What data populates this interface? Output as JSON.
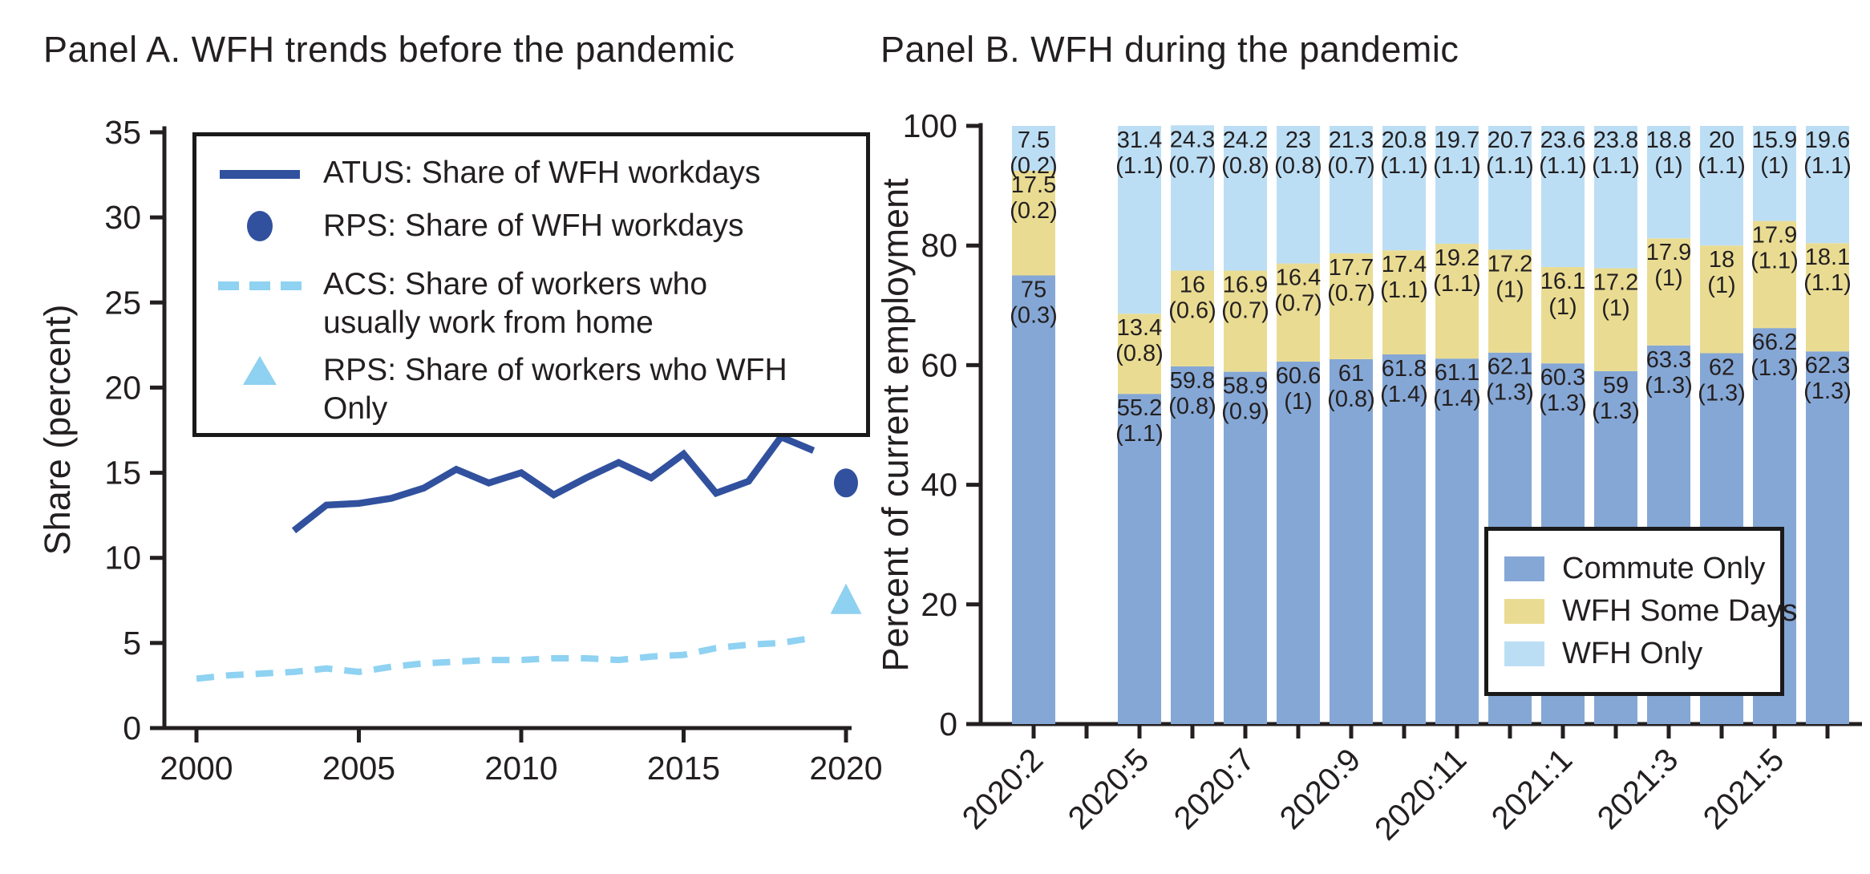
{
  "page": {
    "background": "#ffffff",
    "text_color": "#231f20",
    "axis_color": "#231f20"
  },
  "chart_data": [
    {
      "type": "line",
      "title": "Panel A. WFH trends before the pandemic",
      "xlabel": "",
      "ylabel": "Share (percent)",
      "ylim": [
        0,
        35
      ],
      "yticks": [
        0,
        5,
        10,
        15,
        20,
        25,
        30,
        35
      ],
      "xticks": [
        2000,
        2005,
        2010,
        2015,
        2020
      ],
      "grid": false,
      "legend_position": "upper left",
      "series": [
        {
          "name": "ATUS: Share of WFH workdays",
          "type": "line",
          "style": "solid",
          "color": "#31519e",
          "x": [
            2003,
            2004,
            2005,
            2006,
            2007,
            2008,
            2009,
            2010,
            2011,
            2012,
            2013,
            2014,
            2015,
            2016,
            2017,
            2018,
            2019
          ],
          "values": [
            11.6,
            13.1,
            13.2,
            13.5,
            14.1,
            15.2,
            14.4,
            15.0,
            13.7,
            14.7,
            15.6,
            14.7,
            16.1,
            13.8,
            14.5,
            17.1,
            16.3
          ]
        },
        {
          "name": "RPS: Share of WFH workdays",
          "type": "point",
          "marker": "circle",
          "color": "#31519e",
          "x": [
            2020
          ],
          "values": [
            14.4
          ]
        },
        {
          "name": "ACS: Share of workers who usually work from home",
          "type": "line",
          "style": "dashed",
          "color": "#8fd2f2",
          "x": [
            2000,
            2001,
            2002,
            2003,
            2004,
            2005,
            2006,
            2007,
            2008,
            2009,
            2010,
            2011,
            2012,
            2013,
            2014,
            2015,
            2016,
            2017,
            2018,
            2019
          ],
          "values": [
            2.9,
            3.1,
            3.2,
            3.3,
            3.5,
            3.3,
            3.6,
            3.8,
            3.9,
            4.0,
            4.0,
            4.1,
            4.1,
            4.0,
            4.2,
            4.3,
            4.7,
            4.9,
            5.0,
            5.3
          ]
        },
        {
          "name": "RPS: Share of workers who WFH Only",
          "type": "point",
          "marker": "triangle",
          "color": "#8ed1f0",
          "x": [
            2020
          ],
          "values": [
            7.5
          ]
        }
      ]
    },
    {
      "type": "stacked_bar",
      "title": "Panel B. WFH during the pandemic",
      "xlabel": "",
      "ylabel": "Percent of current employment",
      "ylim": [
        0,
        100
      ],
      "yticks": [
        0,
        20,
        40,
        60,
        80,
        100
      ],
      "grid": false,
      "legend_position": "lower right",
      "slot_count": 16,
      "bar_slots": [
        0,
        2,
        3,
        4,
        5,
        6,
        7,
        8,
        9,
        10,
        11,
        12,
        13,
        14,
        15
      ],
      "xtick_labels": [
        {
          "slot": 0,
          "label": "2020:2"
        },
        {
          "slot": 2,
          "label": "2020:5"
        },
        {
          "slot": 4,
          "label": "2020:7"
        },
        {
          "slot": 6,
          "label": "2020:9"
        },
        {
          "slot": 8,
          "label": "2020:11"
        },
        {
          "slot": 10,
          "label": "2021:1"
        },
        {
          "slot": 12,
          "label": "2021:3"
        },
        {
          "slot": 14,
          "label": "2021:5"
        }
      ],
      "series": [
        {
          "name": "Commute Only",
          "color": "#85a7d5",
          "values": [
            75,
            55.2,
            59.8,
            58.9,
            60.6,
            61,
            61.8,
            61.1,
            62.1,
            60.3,
            59,
            63.3,
            62,
            66.2,
            62.3
          ],
          "se": [
            0.3,
            1.1,
            0.8,
            0.9,
            1,
            0.8,
            1.4,
            1.4,
            1.3,
            1.3,
            1.3,
            1.3,
            1.3,
            1.3,
            1.3
          ]
        },
        {
          "name": "WFH Some Days",
          "color": "#e9dc92",
          "values": [
            17.5,
            13.4,
            16,
            16.9,
            16.4,
            17.7,
            17.4,
            19.2,
            17.2,
            16.1,
            17.2,
            17.9,
            18,
            17.9,
            18.1
          ],
          "se": [
            0.2,
            0.8,
            0.6,
            0.7,
            0.7,
            0.7,
            1.1,
            1.1,
            1,
            1,
            1,
            1,
            1,
            1.1,
            1.1
          ]
        },
        {
          "name": "WFH Only",
          "color": "#bcdef4",
          "values": [
            7.5,
            31.4,
            24.3,
            24.2,
            23,
            21.3,
            20.8,
            19.7,
            20.7,
            23.6,
            23.8,
            18.8,
            20,
            15.9,
            19.6
          ],
          "se": [
            0.2,
            1.1,
            0.7,
            0.8,
            0.8,
            0.7,
            1.1,
            1.1,
            1.1,
            1.1,
            1.1,
            1,
            1.1,
            1,
            1.1
          ]
        }
      ]
    }
  ]
}
